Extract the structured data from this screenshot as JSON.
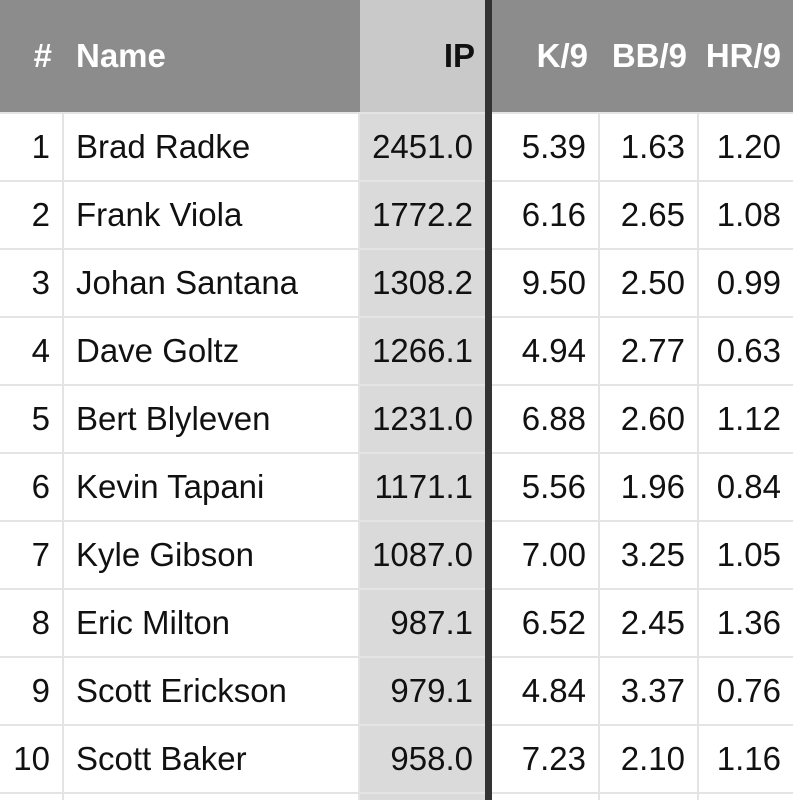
{
  "table": {
    "header": [
      "#",
      "Name",
      "IP",
      "K/9",
      "BB/9",
      "HR/9"
    ],
    "rows": [
      [
        "1",
        "Brad Radke",
        "2451.0",
        "5.39",
        "1.63",
        "1.20"
      ],
      [
        "2",
        "Frank Viola",
        "1772.2",
        "6.16",
        "2.65",
        "1.08"
      ],
      [
        "3",
        "Johan Santana",
        "1308.2",
        "9.50",
        "2.50",
        "0.99"
      ],
      [
        "4",
        "Dave Goltz",
        "1266.1",
        "4.94",
        "2.77",
        "0.63"
      ],
      [
        "5",
        "Bert Blyleven",
        "1231.0",
        "6.88",
        "2.60",
        "1.12"
      ],
      [
        "6",
        "Kevin Tapani",
        "1171.1",
        "5.56",
        "1.96",
        "0.84"
      ],
      [
        "7",
        "Kyle Gibson",
        "1087.0",
        "7.00",
        "3.25",
        "1.05"
      ],
      [
        "8",
        "Eric Milton",
        "987.1",
        "6.52",
        "2.45",
        "1.36"
      ],
      [
        "9",
        "Scott Erickson",
        "979.1",
        "4.84",
        "3.37",
        "0.76"
      ],
      [
        "10",
        "Scott Baker",
        "958.0",
        "7.23",
        "2.10",
        "1.16"
      ]
    ]
  }
}
